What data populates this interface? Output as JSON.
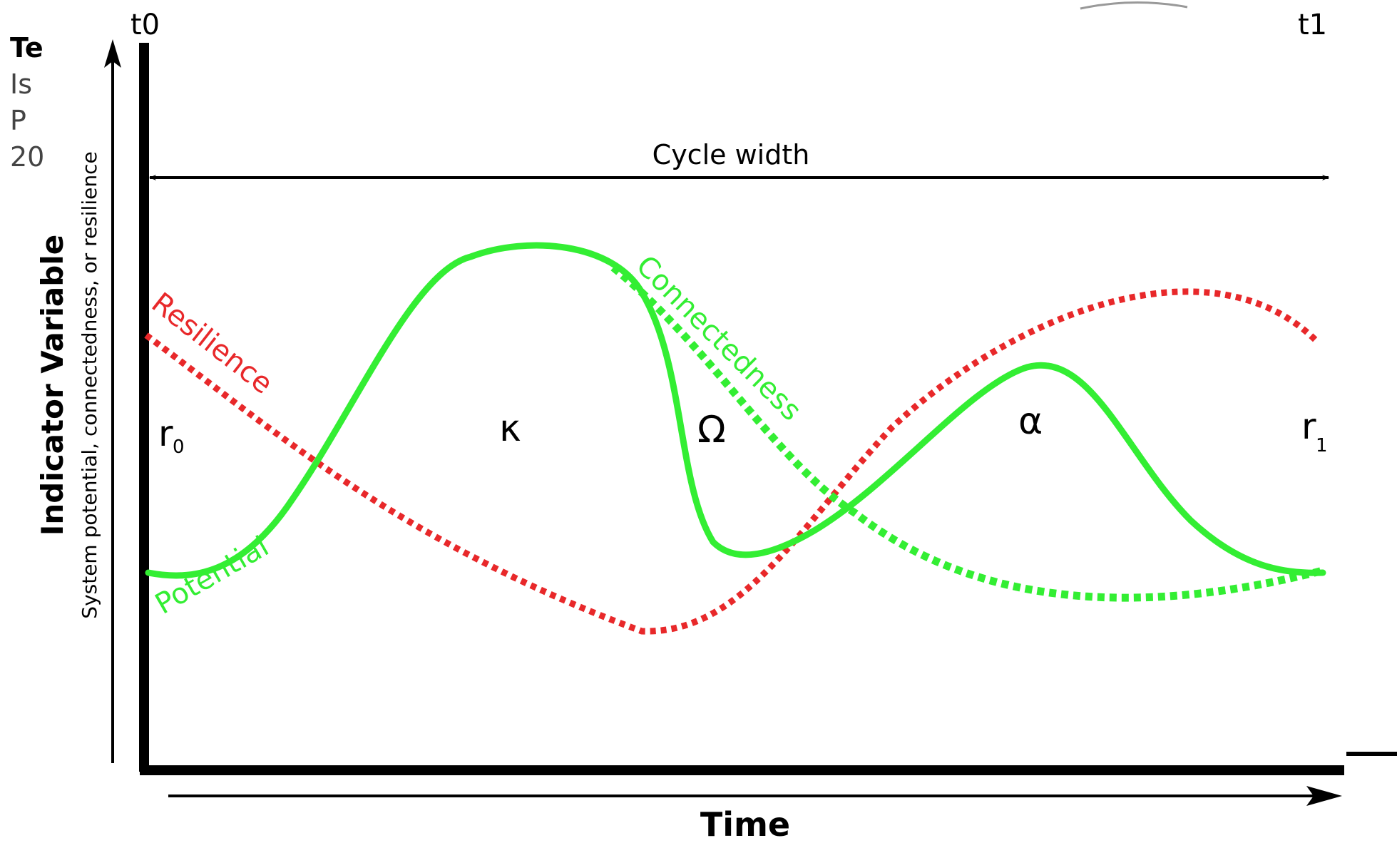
{
  "background_snippet": {
    "line1": "Te",
    "line2": "Is",
    "line3": "P",
    "line4": "20"
  },
  "diagram": {
    "t_start": "t0",
    "t_end": "t1",
    "cycle_width_label": "Cycle width",
    "y_axis_title": "Indicator Variable",
    "y_axis_subtitle": "System potential, connectedness, or resilience",
    "x_axis_title": "Time",
    "phases": {
      "r0": "r",
      "r0_sub": "0",
      "kappa": "κ",
      "omega": "Ω",
      "alpha": "α",
      "r1": "r",
      "r1_sub": "1"
    },
    "curve_labels": {
      "resilience": "Resilience",
      "connectedness": "Connectedness",
      "potential": "Potential"
    },
    "colors": {
      "potential": "#33ee33",
      "connectedness": "#33ee33",
      "resilience": "#e8282a",
      "axes": "#000000"
    }
  }
}
